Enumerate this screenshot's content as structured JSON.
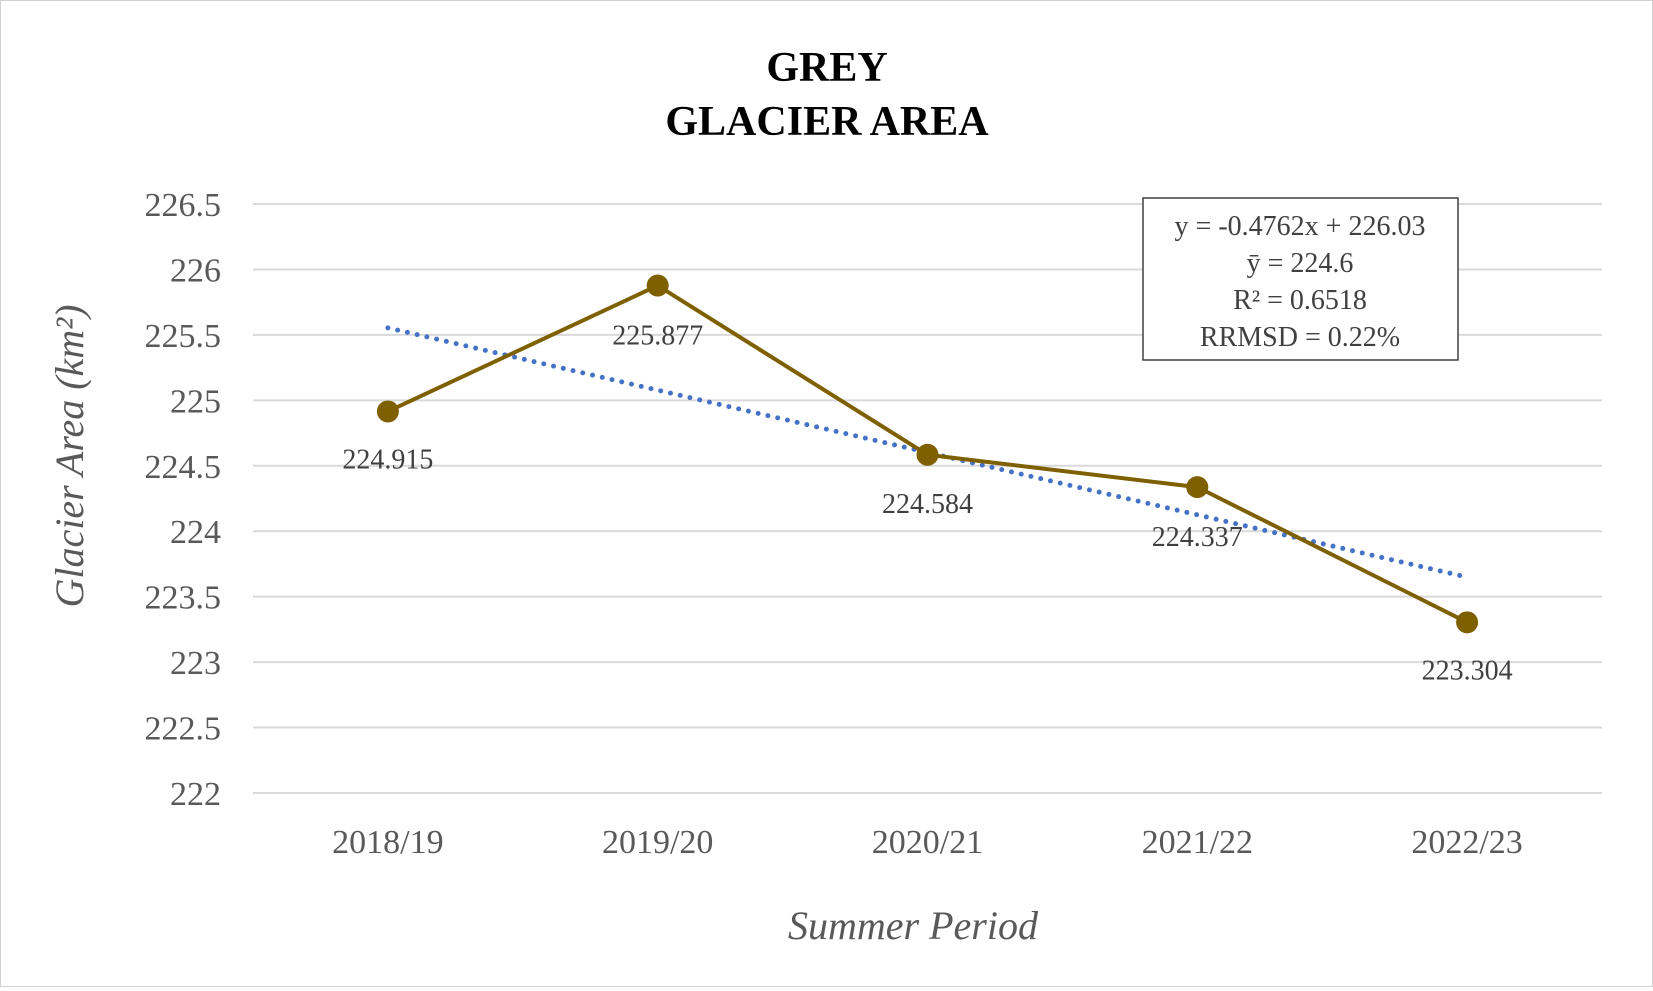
{
  "chart_data": {
    "type": "line",
    "title_lines": [
      "GREY",
      "GLACIER AREA"
    ],
    "xlabel": "Summer Period",
    "ylabel": "Glacier Area (km²)",
    "categories": [
      "2018/19",
      "2019/20",
      "2020/21",
      "2021/22",
      "2022/23"
    ],
    "series": [
      {
        "values": [
          224.915,
          225.877,
          224.584,
          224.337,
          223.304
        ],
        "data_labels": [
          "224.915",
          "225.877",
          "224.584",
          "224.337",
          "223.304"
        ],
        "color": "#7F6000"
      }
    ],
    "trendline": {
      "type": "linear",
      "slope": -0.4762,
      "intercept": 226.03,
      "color": "#4472C4",
      "style": "dotted"
    },
    "stats_box": {
      "lines": [
        "y = -0.4762x + 226.03",
        "ȳ  = 224.6",
        "R² = 0.6518",
        "RRMSD = 0.22%"
      ],
      "placement": "top-right"
    },
    "y_ticks": [
      "222",
      "222.5",
      "223",
      "223.5",
      "224",
      "224.5",
      "225",
      "225.5",
      "226",
      "226.5"
    ],
    "ylim": [
      222,
      226.5
    ],
    "y_step": 0.5,
    "grid": true,
    "gridline_color": "#d9d9d9",
    "legend": "none"
  }
}
